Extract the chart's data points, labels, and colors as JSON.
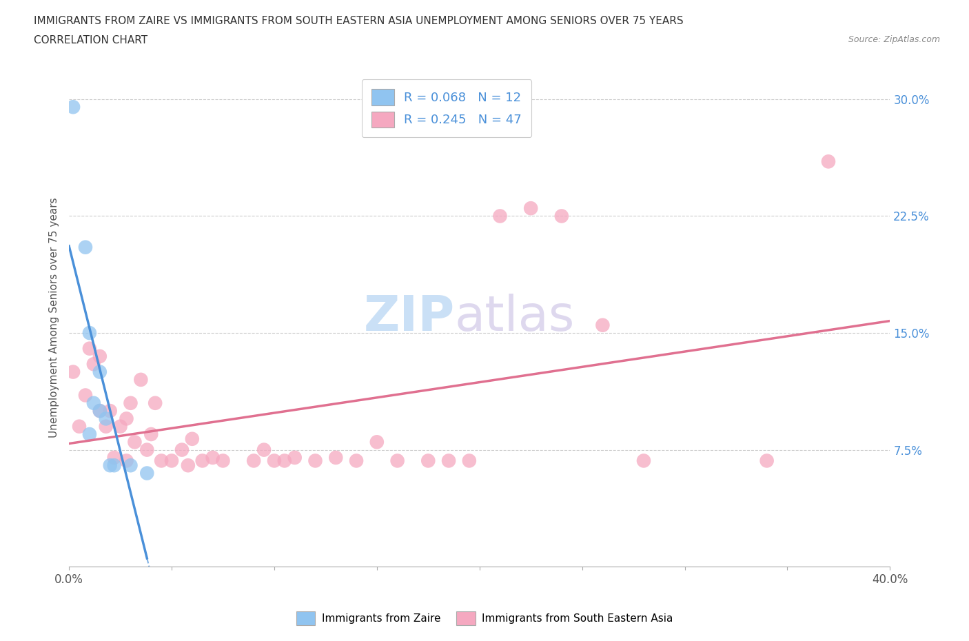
{
  "title_line1": "IMMIGRANTS FROM ZAIRE VS IMMIGRANTS FROM SOUTH EASTERN ASIA UNEMPLOYMENT AMONG SENIORS OVER 75 YEARS",
  "title_line2": "CORRELATION CHART",
  "source": "Source: ZipAtlas.com",
  "ylabel": "Unemployment Among Seniors over 75 years",
  "xlim": [
    0.0,
    0.4
  ],
  "ylim": [
    0.0,
    0.32
  ],
  "ytick_values": [
    0.075,
    0.15,
    0.225,
    0.3
  ],
  "zaire_color": "#90c4f0",
  "sea_color": "#f5a8c0",
  "zaire_line_color": "#4a90d9",
  "sea_line_color": "#e07090",
  "zaire_R": 0.068,
  "zaire_N": 12,
  "sea_R": 0.245,
  "sea_N": 47,
  "zaire_x": [
    0.002,
    0.008,
    0.01,
    0.01,
    0.012,
    0.015,
    0.015,
    0.018,
    0.02,
    0.022,
    0.03,
    0.038
  ],
  "zaire_y": [
    0.295,
    0.205,
    0.15,
    0.085,
    0.105,
    0.125,
    0.1,
    0.095,
    0.065,
    0.065,
    0.065,
    0.06
  ],
  "sea_x": [
    0.002,
    0.005,
    0.008,
    0.01,
    0.012,
    0.015,
    0.015,
    0.018,
    0.02,
    0.022,
    0.025,
    0.028,
    0.028,
    0.03,
    0.032,
    0.035,
    0.038,
    0.04,
    0.042,
    0.045,
    0.05,
    0.055,
    0.058,
    0.06,
    0.065,
    0.07,
    0.075,
    0.09,
    0.095,
    0.1,
    0.105,
    0.11,
    0.12,
    0.13,
    0.14,
    0.15,
    0.16,
    0.175,
    0.185,
    0.195,
    0.21,
    0.225,
    0.24,
    0.26,
    0.28,
    0.34,
    0.37
  ],
  "sea_y": [
    0.125,
    0.09,
    0.11,
    0.14,
    0.13,
    0.135,
    0.1,
    0.09,
    0.1,
    0.07,
    0.09,
    0.068,
    0.095,
    0.105,
    0.08,
    0.12,
    0.075,
    0.085,
    0.105,
    0.068,
    0.068,
    0.075,
    0.065,
    0.082,
    0.068,
    0.07,
    0.068,
    0.068,
    0.075,
    0.068,
    0.068,
    0.07,
    0.068,
    0.07,
    0.068,
    0.08,
    0.068,
    0.068,
    0.068,
    0.068,
    0.225,
    0.23,
    0.225,
    0.155,
    0.068,
    0.068,
    0.26
  ],
  "watermark_ZIP": "ZIP",
  "watermark_atlas": "atlas",
  "background_color": "#ffffff",
  "grid_color": "#cccccc"
}
